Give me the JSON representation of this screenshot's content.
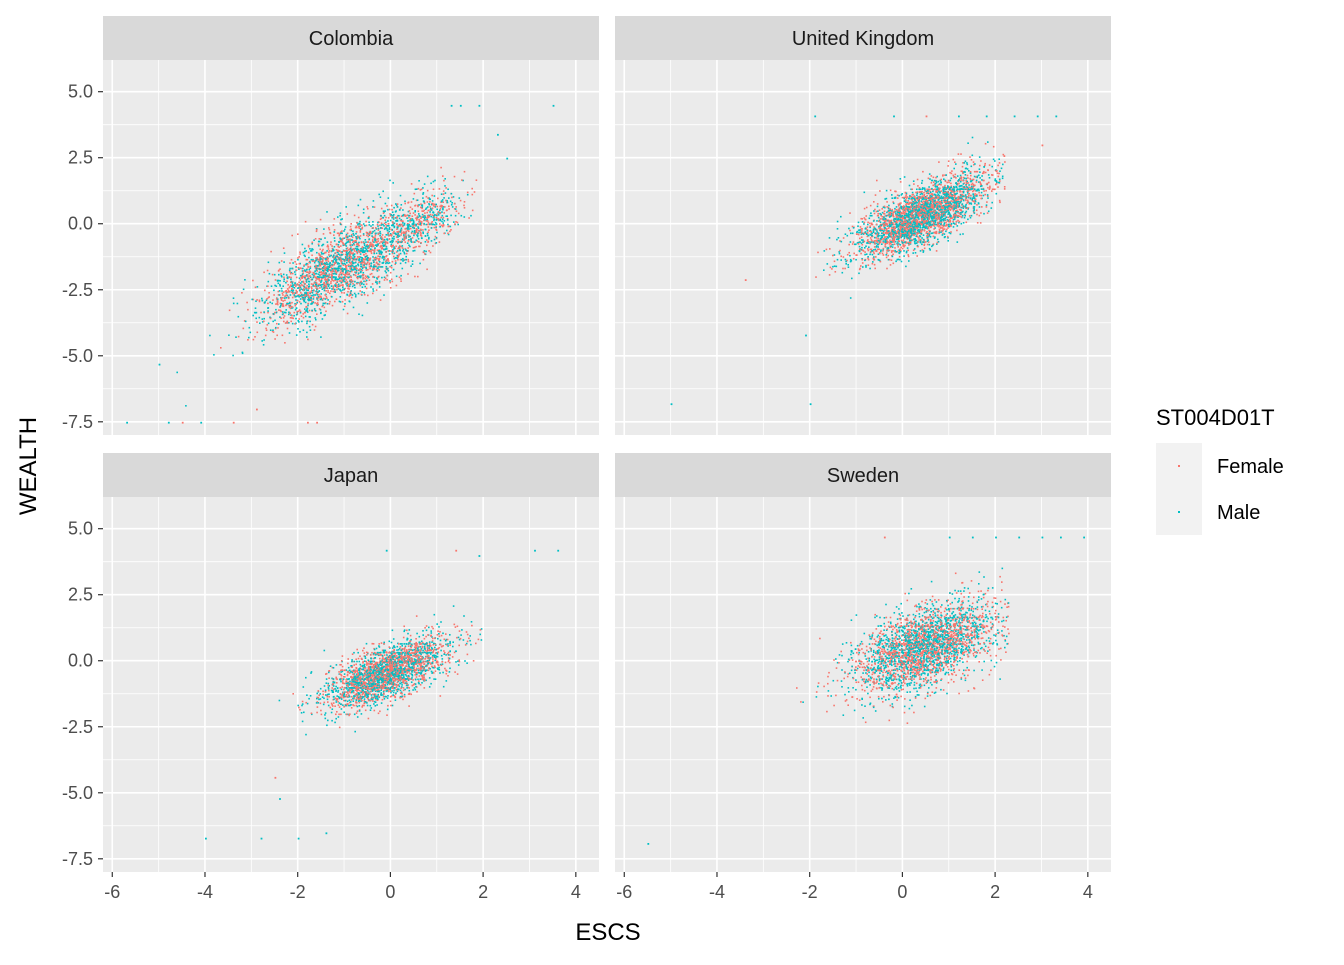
{
  "chart_data": {
    "type": "scatter",
    "facet_layout": "2x2",
    "x_label": "ESCS",
    "y_label": "WEALTH",
    "xlim": [
      -6.2,
      4.5
    ],
    "ylim": [
      -8.0,
      6.2
    ],
    "x_ticks": [
      -6,
      -4,
      -2,
      0,
      2,
      4
    ],
    "x_tick_labels": [
      "-6",
      "-4",
      "-2",
      "0",
      "2",
      "4"
    ],
    "y_ticks": [
      -7.5,
      -5.0,
      -2.5,
      0.0,
      2.5,
      5.0
    ],
    "y_tick_labels": [
      "-7.5",
      "-5.0",
      "-2.5",
      "0.0",
      "2.5",
      "5.0"
    ],
    "grid": true,
    "legend": {
      "title": "ST004D01T",
      "placement": "right",
      "entries": [
        {
          "label": "Female",
          "color": "#F8766D"
        },
        {
          "label": "Male",
          "color": "#00BFC4"
        }
      ]
    },
    "panels": [
      {
        "title": "Colombia",
        "clusters": [
          {
            "x_mean": -1.1,
            "y_mean": -1.6,
            "x_sd": 0.85,
            "slope": 0.95,
            "resid_sd": 0.75,
            "n": 2400,
            "x_min": -5.0,
            "x_max": 1.9
          },
          {
            "x_mean": 0.6,
            "y_mean": 0.0,
            "x_sd": 0.45,
            "slope": 1.0,
            "resid_sd": 0.55,
            "n": 500,
            "x_min": -1.0,
            "x_max": 1.9
          }
        ],
        "outliers": [
          {
            "x": 1.3,
            "y": 4.5,
            "series": "Male"
          },
          {
            "x": 1.5,
            "y": 4.5,
            "series": "Male"
          },
          {
            "x": 1.9,
            "y": 4.5,
            "series": "Male"
          },
          {
            "x": 3.5,
            "y": 4.5,
            "series": "Male"
          },
          {
            "x": 2.3,
            "y": 3.4,
            "series": "Male"
          },
          {
            "x": 2.5,
            "y": 2.5,
            "series": "Male"
          },
          {
            "x": -5.7,
            "y": -7.5,
            "series": "Male"
          },
          {
            "x": -4.8,
            "y": -7.5,
            "series": "Male"
          },
          {
            "x": -4.5,
            "y": -7.5,
            "series": "Female"
          },
          {
            "x": -4.1,
            "y": -7.5,
            "series": "Male"
          },
          {
            "x": -3.4,
            "y": -7.5,
            "series": "Female"
          },
          {
            "x": -1.8,
            "y": -7.5,
            "series": "Female"
          },
          {
            "x": -1.6,
            "y": -7.5,
            "series": "Female"
          },
          {
            "x": -2.9,
            "y": -7.0,
            "series": "Female"
          },
          {
            "x": -5.0,
            "y": -5.3,
            "series": "Male"
          }
        ]
      },
      {
        "title": "United Kingdom",
        "clusters": [
          {
            "x_mean": 0.35,
            "y_mean": 0.3,
            "x_sd": 0.7,
            "slope": 0.8,
            "resid_sd": 0.55,
            "n": 3200,
            "x_min": -3.2,
            "x_max": 2.2
          }
        ],
        "outliers": [
          {
            "x": -0.2,
            "y": 4.1,
            "series": "Male"
          },
          {
            "x": 0.5,
            "y": 4.1,
            "series": "Female"
          },
          {
            "x": 1.2,
            "y": 4.1,
            "series": "Male"
          },
          {
            "x": 1.8,
            "y": 4.1,
            "series": "Male"
          },
          {
            "x": 2.4,
            "y": 4.1,
            "series": "Male"
          },
          {
            "x": 2.9,
            "y": 4.1,
            "series": "Male"
          },
          {
            "x": 3.3,
            "y": 4.1,
            "series": "Male"
          },
          {
            "x": -1.9,
            "y": 4.1,
            "series": "Male"
          },
          {
            "x": 3.0,
            "y": 3.0,
            "series": "Female"
          },
          {
            "x": -5.0,
            "y": -6.8,
            "series": "Male"
          },
          {
            "x": -2.0,
            "y": -6.8,
            "series": "Male"
          },
          {
            "x": -2.1,
            "y": -4.2,
            "series": "Male"
          },
          {
            "x": -3.4,
            "y": -2.1,
            "series": "Female"
          }
        ]
      },
      {
        "title": "Japan",
        "clusters": [
          {
            "x_mean": -0.1,
            "y_mean": -0.45,
            "x_sd": 0.65,
            "slope": 0.65,
            "resid_sd": 0.5,
            "n": 2700,
            "x_min": -2.9,
            "x_max": 2.0
          }
        ],
        "outliers": [
          {
            "x": 3.1,
            "y": 4.2,
            "series": "Male"
          },
          {
            "x": 3.6,
            "y": 4.2,
            "series": "Male"
          },
          {
            "x": 1.4,
            "y": 4.2,
            "series": "Female"
          },
          {
            "x": -0.1,
            "y": 4.2,
            "series": "Male"
          },
          {
            "x": 1.9,
            "y": 4.0,
            "series": "Male"
          },
          {
            "x": -4.0,
            "y": -6.7,
            "series": "Male"
          },
          {
            "x": -2.8,
            "y": -6.7,
            "series": "Male"
          },
          {
            "x": -2.0,
            "y": -6.7,
            "series": "Male"
          },
          {
            "x": -1.4,
            "y": -6.5,
            "series": "Male"
          },
          {
            "x": -2.5,
            "y": -4.4,
            "series": "Female"
          },
          {
            "x": -2.4,
            "y": -5.2,
            "series": "Male"
          }
        ]
      },
      {
        "title": "Sweden",
        "clusters": [
          {
            "x_mean": 0.45,
            "y_mean": 0.55,
            "x_sd": 0.75,
            "slope": 0.55,
            "resid_sd": 0.75,
            "n": 2900,
            "x_min": -3.3,
            "x_max": 2.3
          }
        ],
        "outliers": [
          {
            "x": 1.0,
            "y": 4.7,
            "series": "Male"
          },
          {
            "x": 1.5,
            "y": 4.7,
            "series": "Male"
          },
          {
            "x": 2.0,
            "y": 4.7,
            "series": "Male"
          },
          {
            "x": 2.5,
            "y": 4.7,
            "series": "Male"
          },
          {
            "x": 3.0,
            "y": 4.7,
            "series": "Male"
          },
          {
            "x": 3.4,
            "y": 4.7,
            "series": "Male"
          },
          {
            "x": 3.9,
            "y": 4.7,
            "series": "Male"
          },
          {
            "x": -0.4,
            "y": 4.7,
            "series": "Female"
          },
          {
            "x": -5.5,
            "y": -6.9,
            "series": "Male"
          }
        ]
      }
    ]
  }
}
